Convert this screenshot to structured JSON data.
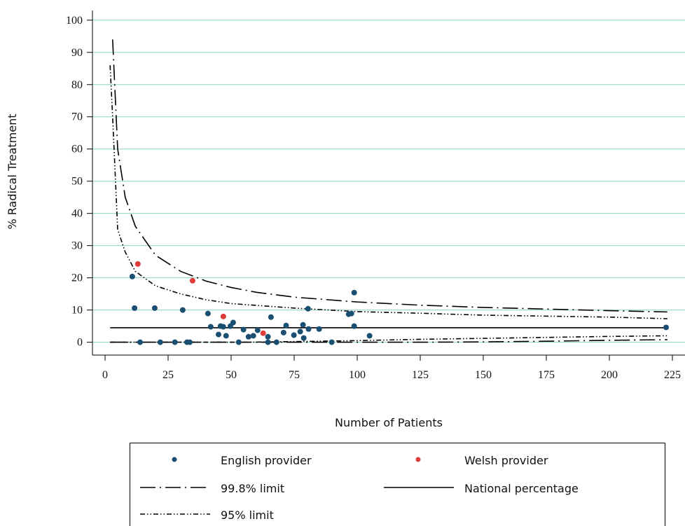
{
  "chart_data": {
    "type": "scatter",
    "x_label": "Number of Patients",
    "y_label": "% Radical Treatment",
    "xlim": [
      -5,
      230
    ],
    "ylim": [
      -4,
      103
    ],
    "xticks": [
      0,
      25,
      50,
      75,
      100,
      125,
      150,
      175,
      200,
      225
    ],
    "yticks": [
      0,
      10,
      20,
      30,
      40,
      50,
      60,
      70,
      80,
      90,
      100
    ],
    "grid": true,
    "grid_color": "#8fd3c5",
    "legend_position": "bottom",
    "series": [
      {
        "name": "English provider",
        "color": "#1a4f72",
        "style": "points",
        "x": [
          10.8,
          11.7,
          13.9,
          19.7,
          21.9,
          27.7,
          30.8,
          32.5,
          33.6,
          40.8,
          41.9,
          45,
          45.8,
          46.9,
          48,
          49.7,
          50.8,
          53,
          54.9,
          56.9,
          58.8,
          60.5,
          64.6,
          64.6,
          65.8,
          68,
          70.8,
          71.8,
          74.9,
          77.4,
          78.5,
          78.8,
          80.5,
          80.7,
          84.9,
          89.9,
          96.6,
          97.7,
          98.8,
          98.8,
          104.9,
          222.5
        ],
        "values": [
          20.4,
          10.6,
          0,
          10.6,
          0,
          0,
          10,
          0,
          0,
          8.9,
          4.8,
          2.4,
          5,
          4.8,
          2,
          5,
          6.1,
          0,
          3.9,
          1.7,
          2,
          3.7,
          1.7,
          0,
          7.8,
          0,
          3,
          5.2,
          2.2,
          3.3,
          5.4,
          1.3,
          10.4,
          4.1,
          4.1,
          0,
          8.7,
          8.9,
          15.4,
          5,
          2,
          4.6
        ]
      },
      {
        "name": "Welsh provider",
        "color": "#e03c3c",
        "style": "points",
        "x": [
          13,
          34.7,
          46.9,
          62.7
        ],
        "values": [
          24.3,
          19.1,
          8,
          2.8
        ]
      },
      {
        "name": "99.8% limit",
        "color": "#000000",
        "style": "longdashdot",
        "x": [
          3,
          5,
          8,
          12,
          20,
          30,
          40,
          50,
          60,
          75,
          100,
          125,
          150,
          175,
          200,
          223
        ],
        "values": [
          94,
          60,
          45,
          36,
          27,
          22,
          19,
          17,
          15.5,
          14,
          12.5,
          11.5,
          10.8,
          10.3,
          9.8,
          9.4
        ],
        "lower_x": [
          2,
          125,
          150,
          175,
          200,
          223
        ],
        "lower_values": [
          0,
          0,
          0.1,
          0.3,
          0.6,
          0.8
        ]
      },
      {
        "name": "National percentage",
        "color": "#000000",
        "style": "solid",
        "x": [
          2,
          223
        ],
        "values": [
          4.5,
          4.5
        ]
      },
      {
        "name": "95% limit",
        "color": "#000000",
        "style": "dashdotdot",
        "x": [
          2,
          3,
          5,
          8,
          12,
          20,
          30,
          40,
          50,
          75,
          100,
          125,
          150,
          175,
          200,
          223
        ],
        "values": [
          86,
          70,
          35,
          28,
          22,
          17.5,
          15,
          13.2,
          12,
          10.6,
          9.5,
          9,
          8.4,
          8.1,
          7.8,
          7.3
        ],
        "lower_x": [
          2,
          55,
          75,
          100,
          125,
          150,
          175,
          200,
          223
        ],
        "lower_values": [
          0,
          0,
          0.2,
          0.5,
          0.9,
          1.2,
          1.5,
          1.8,
          2
        ]
      }
    ]
  }
}
